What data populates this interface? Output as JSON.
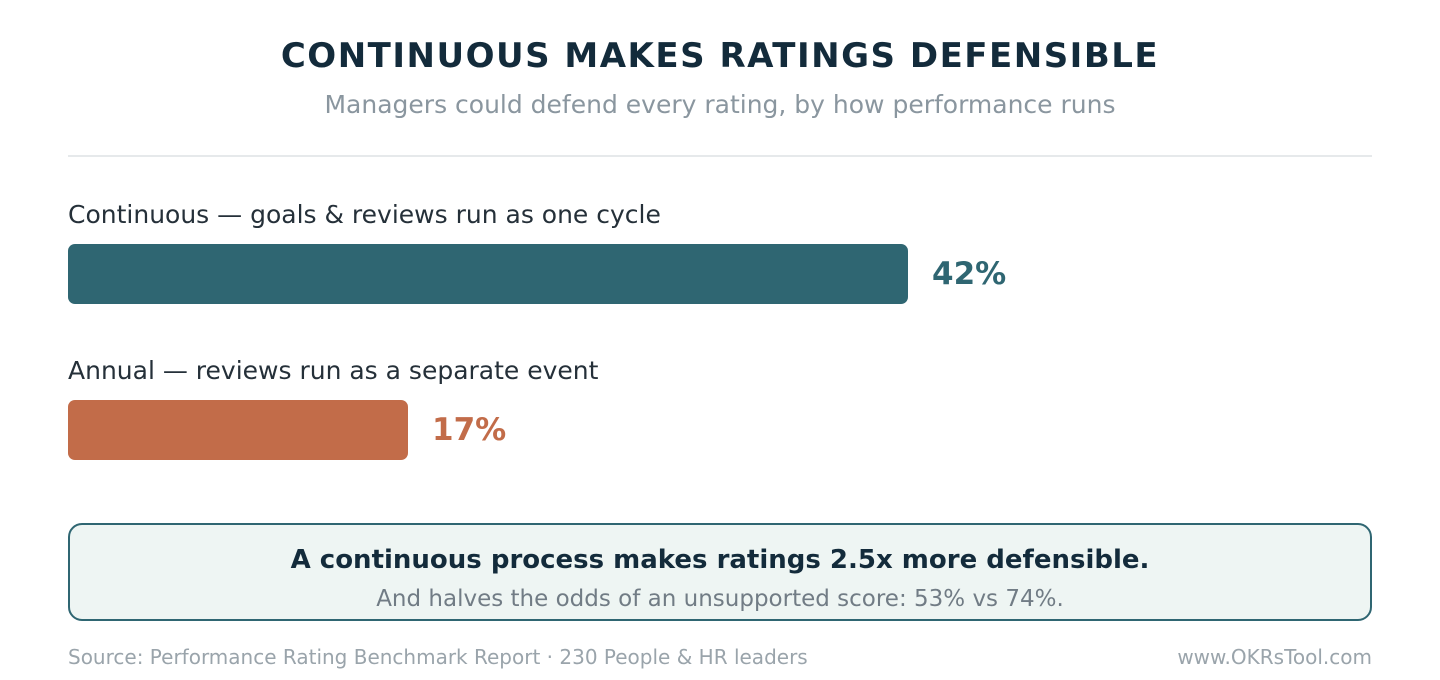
{
  "chart_data": {
    "type": "bar",
    "orientation": "horizontal",
    "title": "CONTINUOUS MAKES RATINGS DEFENSIBLE",
    "subtitle": "Managers could defend every rating, by how performance runs",
    "categories": [
      "Continuous — goals & reviews run as one cycle",
      "Annual — reviews run as a separate event"
    ],
    "values": [
      42,
      17
    ],
    "value_labels": [
      "42%",
      "17%"
    ],
    "colors": [
      "#2f6672",
      "#c26c49"
    ],
    "xlim": [
      0,
      65
    ]
  },
  "callout": {
    "headline": "A continuous process makes ratings 2.5x more defensible.",
    "subtext": "And halves the odds of an unsupported score: 53% vs 74%."
  },
  "footer": {
    "source": "Source: Performance Rating Benchmark Report · 230 People & HR leaders",
    "site": "www.OKRsTool.com"
  }
}
